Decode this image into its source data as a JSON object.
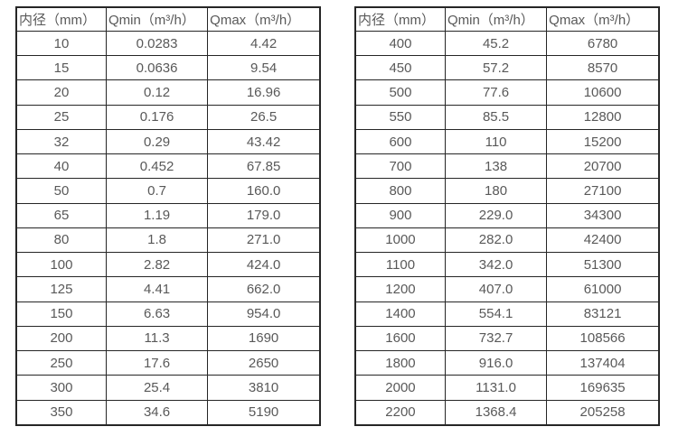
{
  "style": {
    "border_color": "#262626",
    "text_color": "#595959",
    "background_color": "#ffffff"
  },
  "tables": [
    {
      "name": "flow-table-dn10-350",
      "headers": [
        "内径（mm）",
        "Qmin（m³/h）",
        "Qmax（m³/h）"
      ],
      "rows": [
        [
          "10",
          "0.0283",
          "4.42"
        ],
        [
          "15",
          "0.0636",
          "9.54"
        ],
        [
          "20",
          "0.12",
          "16.96"
        ],
        [
          "25",
          "0.176",
          "26.5"
        ],
        [
          "32",
          "0.29",
          "43.42"
        ],
        [
          "40",
          "0.452",
          "67.85"
        ],
        [
          "50",
          "0.7",
          "160.0"
        ],
        [
          "65",
          "1.19",
          "179.0"
        ],
        [
          "80",
          "1.8",
          "271.0"
        ],
        [
          "100",
          "2.82",
          "424.0"
        ],
        [
          "125",
          "4.41",
          "662.0"
        ],
        [
          "150",
          "6.63",
          "954.0"
        ],
        [
          "200",
          "11.3",
          "1690"
        ],
        [
          "250",
          "17.6",
          "2650"
        ],
        [
          "300",
          "25.4",
          "3810"
        ],
        [
          "350",
          "34.6",
          "5190"
        ]
      ]
    },
    {
      "name": "flow-table-dn400-2200",
      "headers": [
        "内径（mm）",
        "Qmin（m³/h）",
        "Qmax（m³/h）"
      ],
      "rows": [
        [
          "400",
          "45.2",
          "6780"
        ],
        [
          "450",
          "57.2",
          "8570"
        ],
        [
          "500",
          "77.6",
          "10600"
        ],
        [
          "550",
          "85.5",
          "12800"
        ],
        [
          "600",
          "110",
          "15200"
        ],
        [
          "700",
          "138",
          "20700"
        ],
        [
          "800",
          "180",
          "27100"
        ],
        [
          "900",
          "229.0",
          "34300"
        ],
        [
          "1000",
          "282.0",
          "42400"
        ],
        [
          "1100",
          "342.0",
          "51300"
        ],
        [
          "1200",
          "407.0",
          "61000"
        ],
        [
          "1400",
          "554.1",
          "83121"
        ],
        [
          "1600",
          "732.7",
          "108566"
        ],
        [
          "1800",
          "916.0",
          "137404"
        ],
        [
          "2000",
          "1131.0",
          "169635"
        ],
        [
          "2200",
          "1368.4",
          "205258"
        ]
      ]
    }
  ]
}
